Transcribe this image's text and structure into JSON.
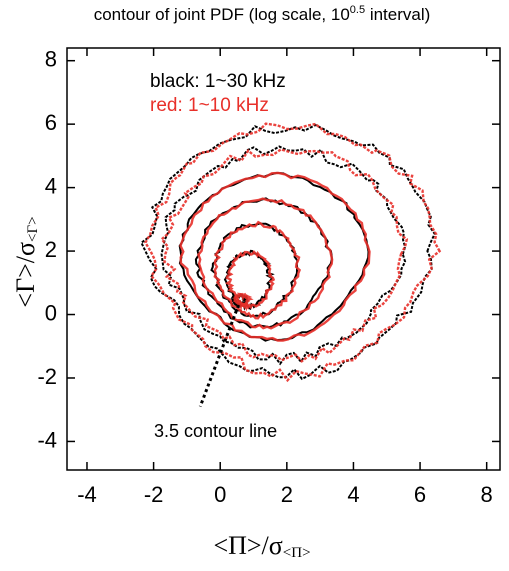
{
  "chart_data": {
    "type": "contour",
    "title": "contour of joint PDF (log scale, 10",
    "title_superscript": "0.5",
    "title_end": " interval)",
    "x_label": "<Π>/σ",
    "x_label_subscript": "<Π>",
    "y_label": "<Γ>/σ",
    "y_label_subscript": "<Γ>",
    "series": [
      {
        "name": "black: 1~30 kHz",
        "color": "#000000"
      },
      {
        "name": "red: 1~10 kHz",
        "color": "#e8302a"
      }
    ],
    "annotation": "3.5 contour line",
    "xlim": [
      -4.6,
      8.4
    ],
    "xticks": [
      -4,
      -2,
      0,
      2,
      4,
      6,
      8
    ],
    "ylim": [
      -4.9,
      8.4
    ],
    "yticks": [
      -4,
      -2,
      0,
      2,
      4,
      6,
      8
    ]
  }
}
